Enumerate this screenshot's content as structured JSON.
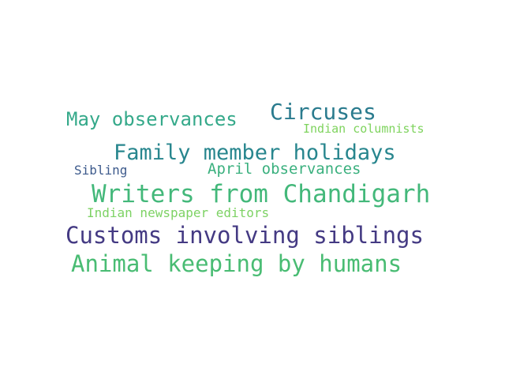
{
  "words": [
    {
      "text": "Circuses",
      "color": "#2a7b8e"
    },
    {
      "text": "May observances",
      "color": "#35a98a"
    },
    {
      "text": "Indian columnists",
      "color": "#7ed35d"
    },
    {
      "text": "Family member holidays",
      "color": "#28868e"
    },
    {
      "text": "Sibling",
      "color": "#3d5a8c"
    },
    {
      "text": "April observances",
      "color": "#3ab07e"
    },
    {
      "text": "Writers from Chandigarh",
      "color": "#43b87a"
    },
    {
      "text": "Indian newspaper editors",
      "color": "#7dd264"
    },
    {
      "text": "Customs involving siblings",
      "color": "#443a83"
    },
    {
      "text": "Animal keeping by humans",
      "color": "#49bc73"
    }
  ]
}
